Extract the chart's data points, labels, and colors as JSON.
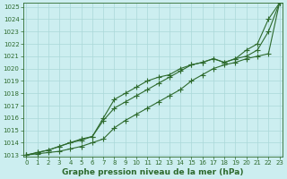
{
  "xlabel": "Graphe pression niveau de la mer (hPa)",
  "x": [
    0,
    1,
    2,
    3,
    4,
    5,
    6,
    7,
    8,
    9,
    10,
    11,
    12,
    13,
    14,
    15,
    16,
    17,
    18,
    19,
    20,
    21,
    22,
    23
  ],
  "line1": [
    1013.0,
    1013.1,
    1013.2,
    1013.3,
    1013.5,
    1013.7,
    1014.0,
    1014.3,
    1015.2,
    1015.8,
    1016.3,
    1016.8,
    1017.3,
    1017.8,
    1018.3,
    1019.0,
    1019.5,
    1020.0,
    1020.3,
    1020.5,
    1020.8,
    1021.0,
    1021.2,
    1025.3
  ],
  "line2": [
    1013.0,
    1013.2,
    1013.4,
    1013.7,
    1014.0,
    1014.2,
    1014.5,
    1015.8,
    1016.8,
    1017.3,
    1017.8,
    1018.3,
    1018.8,
    1019.3,
    1019.8,
    1020.3,
    1020.5,
    1020.8,
    1020.5,
    1020.8,
    1021.0,
    1021.5,
    1023.0,
    1025.3
  ],
  "line3": [
    1013.0,
    1013.2,
    1013.4,
    1013.7,
    1014.0,
    1014.3,
    1014.5,
    1016.0,
    1017.5,
    1018.0,
    1018.5,
    1019.0,
    1019.3,
    1019.5,
    1020.0,
    1020.3,
    1020.5,
    1020.8,
    1020.5,
    1020.8,
    1021.5,
    1022.0,
    1024.0,
    1025.3
  ],
  "ylim_min": 1013,
  "ylim_max": 1025,
  "yticks": [
    1013,
    1014,
    1015,
    1016,
    1017,
    1018,
    1019,
    1020,
    1021,
    1022,
    1023,
    1024,
    1025
  ],
  "xticks": [
    0,
    1,
    2,
    3,
    4,
    5,
    6,
    7,
    8,
    9,
    10,
    11,
    12,
    13,
    14,
    15,
    16,
    17,
    18,
    19,
    20,
    21,
    22,
    23
  ],
  "line_color": "#2d6a2d",
  "bg_color": "#cceef0",
  "grid_color": "#aad8d8",
  "marker": "+",
  "marker_size": 4,
  "line_width": 0.8,
  "tick_fontsize": 5.0,
  "xlabel_fontsize": 6.5
}
